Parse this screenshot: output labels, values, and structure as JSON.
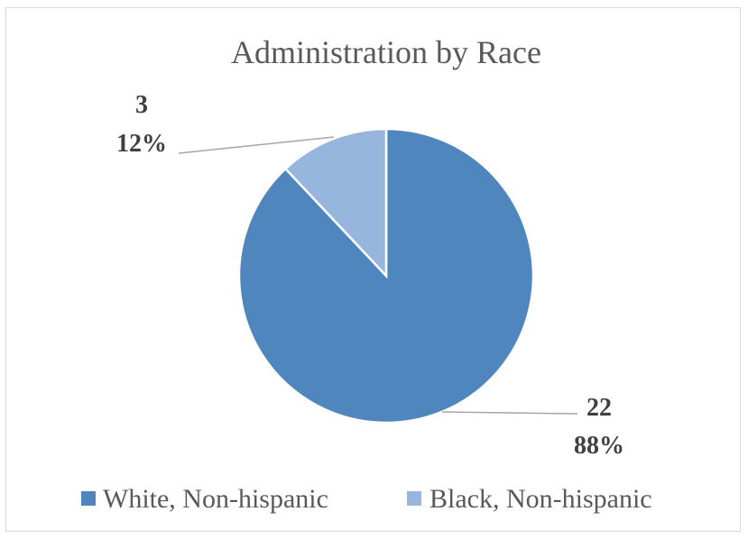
{
  "chart_data": {
    "type": "pie",
    "title": "Administration by Race",
    "categories": [
      "White, Non-hispanic",
      "Black, Non-hispanic"
    ],
    "values": [
      22,
      3
    ],
    "percent_labels": [
      "88%",
      "12%"
    ],
    "count_labels": [
      "22",
      "3"
    ],
    "colors": [
      "#4f86bd",
      "#97b6dd"
    ],
    "legend_position": "bottom",
    "start_angle_deg": 0,
    "direction": "clockwise"
  }
}
